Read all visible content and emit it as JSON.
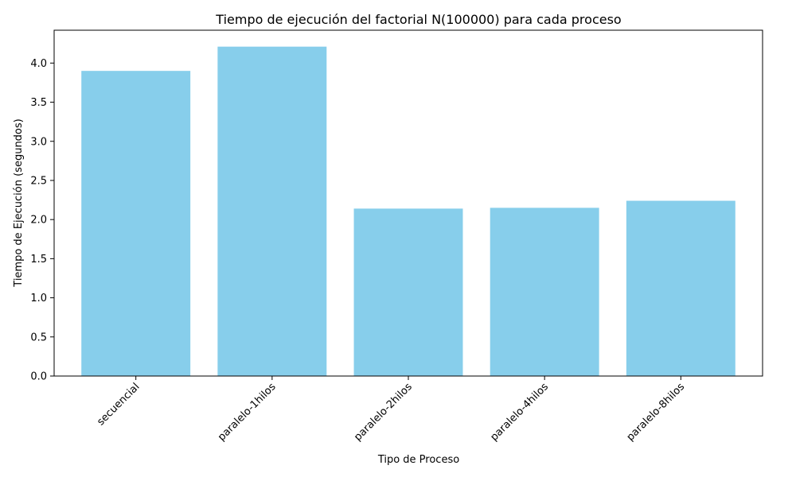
{
  "chart_data": {
    "type": "bar",
    "title": "Tiempo de ejecución del factorial N(100000) para cada proceso",
    "xlabel": "Tipo de Proceso",
    "ylabel": "Tiempo de Ejecución (segundos)",
    "categories": [
      "secuencial",
      "paralelo-1hilos",
      "paralelo-2hilos",
      "paralelo-4hilos",
      "paralelo-8hilos"
    ],
    "values": [
      3.9,
      4.21,
      2.14,
      2.15,
      2.24
    ],
    "ylim": [
      0,
      4.42
    ],
    "yticks": [
      "0.0",
      "0.5",
      "1.0",
      "1.5",
      "2.0",
      "2.5",
      "3.0",
      "3.5",
      "4.0"
    ],
    "bar_color": "#87ceeb",
    "grid": false,
    "x_tick_rotation_deg": 45
  }
}
